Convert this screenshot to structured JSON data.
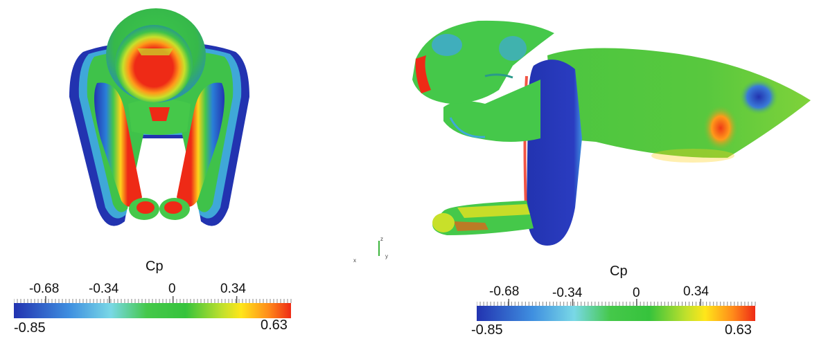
{
  "figure": {
    "left_view": {
      "name": "front",
      "colorbar": {
        "title": "Cp",
        "min": "-0.85",
        "max": "0.63",
        "ticks": [
          "-0.68",
          "-0.34",
          "0",
          "0.34"
        ],
        "tick_values": [
          -0.68,
          -0.34,
          0,
          0.34
        ],
        "range": [
          -0.85,
          0.63
        ]
      }
    },
    "right_view": {
      "name": "side",
      "colorbar": {
        "title": "Cp",
        "min": "-0.85",
        "max": "0.63",
        "ticks": [
          "-0.68",
          "-0.34",
          "0",
          "0.34"
        ],
        "tick_values": [
          -0.68,
          -0.34,
          0,
          0.34
        ],
        "range": [
          -0.85,
          0.63
        ]
      }
    },
    "axes_triad": {
      "labels": [
        "x",
        "y",
        "z"
      ]
    },
    "colormap": [
      "#2233b0",
      "#3f8fe0",
      "#79d8e6",
      "#45c84a",
      "#36c33c",
      "#bfe02c",
      "#ffe61a",
      "#ff8a1a",
      "#ee2a16"
    ]
  }
}
